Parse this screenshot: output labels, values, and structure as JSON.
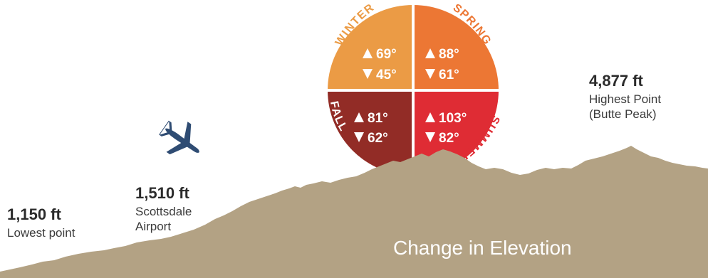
{
  "colors": {
    "winter": "#EB9B45",
    "spring": "#EC7734",
    "fall": "#922C26",
    "summer": "#DF2C34",
    "terrain": "#B3A284",
    "plane": "#2F4C73",
    "text": "#2b2b2b"
  },
  "seasons": {
    "winter": {
      "name": "WINTER",
      "high": "69°",
      "low": "45°"
    },
    "spring": {
      "name": "SPRING",
      "high": "88°",
      "low": "61°"
    },
    "fall": {
      "name": "FALL",
      "high": "81°",
      "low": "62°"
    },
    "summer": {
      "name": "SUMMER",
      "high": "103°",
      "low": "82°"
    }
  },
  "icons": {
    "high": "triangle-up-icon",
    "low": "triangle-down-icon",
    "plane": "airplane-icon"
  },
  "points": {
    "lowest": {
      "value": "1,150 ft",
      "label_1": "Lowest point"
    },
    "airport": {
      "value": "1,510 ft",
      "label_1": "Scottsdale",
      "label_2": "Airport"
    },
    "highest": {
      "value": "4,877 ft",
      "label_1": "Highest Point",
      "label_2": "(Butte Peak)"
    }
  },
  "caption": "Change in Elevation"
}
